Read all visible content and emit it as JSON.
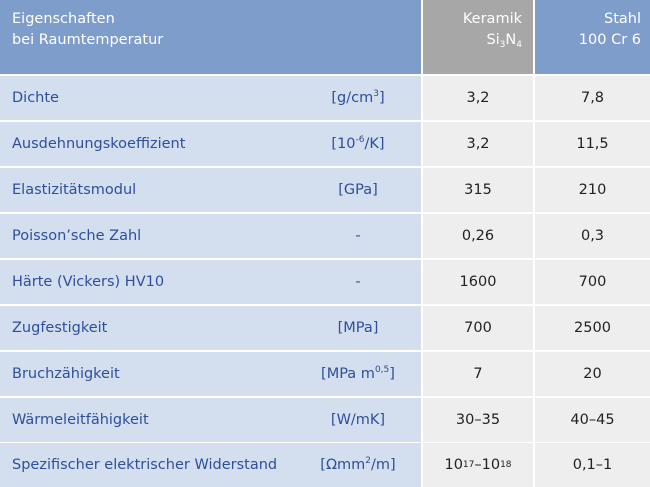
{
  "header": {
    "property_line1": "Eigenschaften",
    "property_line2": "bei Raumtemperatur",
    "ceramic_line1": "Keramik",
    "ceramic_formula": {
      "a": "Si",
      "a_sub": "3",
      "b": "N",
      "b_sub": "4"
    },
    "steel_line1": "Stahl",
    "steel_line2": "100 Cr 6"
  },
  "rows": [
    {
      "name": "Dichte",
      "unit": {
        "pre": "[g/cm",
        "sup": "3",
        "post": "]"
      },
      "ceramic": "3,2",
      "steel": "7,8"
    },
    {
      "name": "Ausdehnungskoeffizient",
      "unit": {
        "pre": "[10",
        "sup": "-6",
        "post": "/K]"
      },
      "ceramic": "3,2",
      "steel": "11,5"
    },
    {
      "name": "Elastizitätsmodul",
      "unit": {
        "pre": "[GPa]",
        "sup": "",
        "post": ""
      },
      "ceramic": "315",
      "steel": "210"
    },
    {
      "name": "Poisson’sche Zahl",
      "unit": {
        "pre": "-",
        "sup": "",
        "post": ""
      },
      "ceramic": "0,26",
      "steel": "0,3"
    },
    {
      "name": "Härte (Vickers) HV10",
      "unit": {
        "pre": "-",
        "sup": "",
        "post": ""
      },
      "ceramic": "1600",
      "steel": "700"
    },
    {
      "name": "Zugfestigkeit",
      "unit": {
        "pre": "[MPa]",
        "sup": "",
        "post": ""
      },
      "ceramic": "700",
      "steel": "2500"
    },
    {
      "name": "Bruchzähigkeit",
      "unit": {
        "pre": "[MPa m",
        "sup": "0,5",
        "post": "]"
      },
      "ceramic": "7",
      "steel": "20"
    },
    {
      "name": "Wärmeleitfähigkeit",
      "unit": {
        "pre": "[W/mK]",
        "sup": "",
        "post": ""
      },
      "ceramic": "30–35",
      "steel": "40–45"
    },
    {
      "name": "Spezifischer elektrischer Widerstand",
      "unit": {
        "pre": "[Ωmm",
        "sup": "2",
        "post": "/m]"
      },
      "ceramic_parts": {
        "a": "10",
        "a_sup": "17",
        "mid": "–10",
        "b_sup": "18"
      },
      "steel": "0,1–1"
    }
  ]
}
